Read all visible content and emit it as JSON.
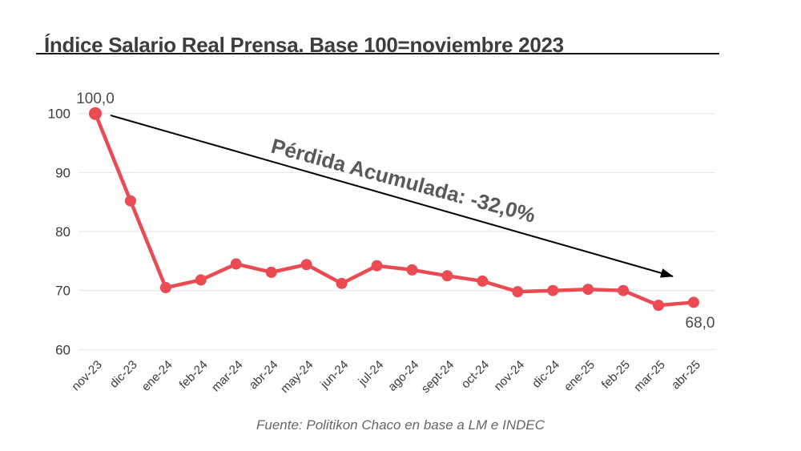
{
  "title": "Índice Salario Real Prensa. Base 100=noviembre 2023",
  "footer": "Fuente: Politikon Chaco en base a LM e INDEC",
  "annotation": {
    "text": "Pérdida Acumulada: -32,0%",
    "color": "#595959"
  },
  "point_labels": {
    "first": "100,0",
    "last": "68,0"
  },
  "colors": {
    "line": "#ea4b52",
    "arrow": "#000000",
    "grid": "#eaeaea",
    "axis_text": "#3a3a3a",
    "title_text": "#3d3d3d",
    "label_text": "#4a4a4a"
  },
  "chart_data": {
    "type": "line",
    "title": "Índice Salario Real Prensa. Base 100=noviembre 2023",
    "categories": [
      "nov-23",
      "dic-23",
      "ene-24",
      "feb-24",
      "mar-24",
      "abr-24",
      "may-24",
      "jun-24",
      "jul-24",
      "ago-24",
      "sept-24",
      "oct-24",
      "nov-24",
      "dic-24",
      "ene-25",
      "feb-25",
      "mar-25",
      "abr-25"
    ],
    "values": [
      100.0,
      85.2,
      70.5,
      71.8,
      74.5,
      73.1,
      74.4,
      71.2,
      74.2,
      73.5,
      72.5,
      71.6,
      69.8,
      70.0,
      70.2,
      70.0,
      67.5,
      68.0
    ],
    "xlabel": "",
    "ylabel": "",
    "ylim": [
      60,
      102
    ],
    "yticks": [
      60,
      70,
      80,
      90,
      100
    ],
    "grid": true,
    "legend": false,
    "annotations": [
      {
        "text": "Pérdida Acumulada: -32,0%",
        "type": "arrow",
        "from_category": "nov-23",
        "from_value": 100.0,
        "to_category": "abr-25",
        "to_value": 72.0
      }
    ],
    "data_labels": [
      {
        "category": "nov-23",
        "label": "100,0"
      },
      {
        "category": "abr-25",
        "label": "68,0"
      }
    ]
  }
}
